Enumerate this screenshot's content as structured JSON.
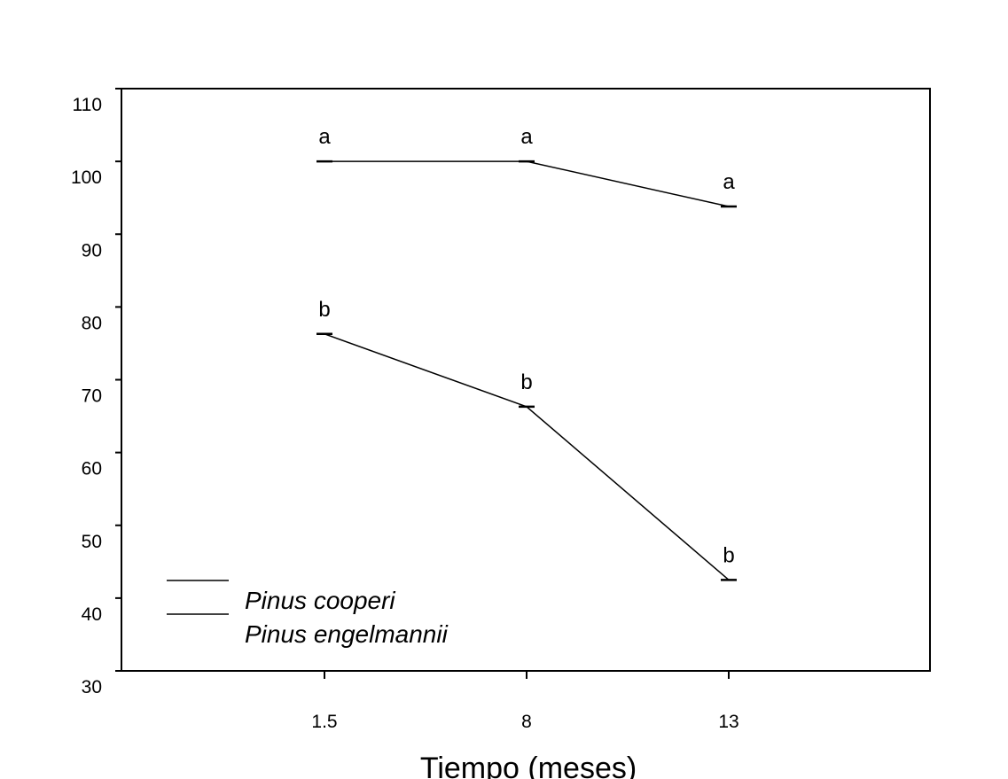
{
  "chart_data": {
    "type": "line",
    "xlabel": "Tiempo (meses)",
    "ylabel": "",
    "categories": [
      "1.5",
      "8",
      "13"
    ],
    "ylim": [
      30,
      110
    ],
    "yticks": [
      "30",
      "40",
      "50",
      "60",
      "70",
      "80",
      "90",
      "100",
      "110"
    ],
    "grid": false,
    "legend_position": "bottom-left",
    "series": [
      {
        "name": "Pinus cooperi",
        "values": [
          100,
          100,
          93.8
        ],
        "labels": [
          "a",
          "a",
          "a"
        ]
      },
      {
        "name": "Pinus engelmannii",
        "values": [
          76.3,
          66.3,
          42.5
        ],
        "labels": [
          "b",
          "b",
          "b"
        ]
      }
    ]
  }
}
